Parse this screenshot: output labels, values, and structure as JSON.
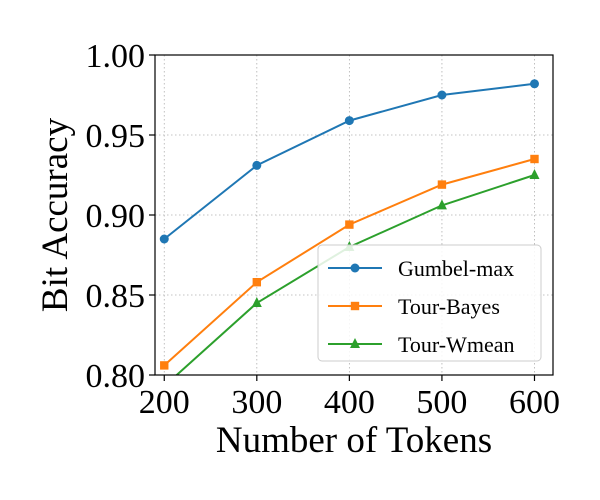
{
  "chart_data": {
    "type": "line",
    "title": "",
    "xlabel": "Number of Tokens",
    "ylabel": "Bit Accuracy",
    "x": [
      200,
      300,
      400,
      500,
      600
    ],
    "xlim": [
      190,
      620
    ],
    "ylim": [
      0.8,
      1.0
    ],
    "xticks": [
      "200",
      "300",
      "400",
      "500",
      "600"
    ],
    "yticks": [
      "0.80",
      "0.85",
      "0.90",
      "0.95",
      "1.00"
    ],
    "grid": true,
    "legend_position": "lower-right",
    "series": [
      {
        "name": "Gumbel-max",
        "color": "#1f77b4",
        "marker": "circle",
        "values": [
          0.885,
          0.931,
          0.959,
          0.975,
          0.982
        ]
      },
      {
        "name": "Tour-Bayes",
        "color": "#ff7f0e",
        "marker": "square",
        "values": [
          0.806,
          0.858,
          0.894,
          0.919,
          0.935
        ]
      },
      {
        "name": "Tour-Wmean",
        "color": "#2ca02c",
        "marker": "triangle",
        "values": [
          0.793,
          0.845,
          0.88,
          0.906,
          0.925
        ]
      }
    ]
  }
}
